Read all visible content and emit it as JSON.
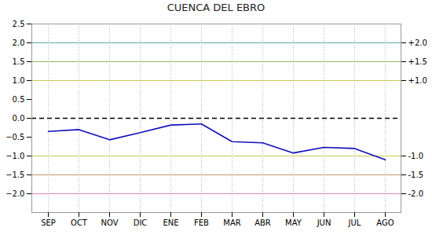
{
  "chart_data": {
    "type": "line",
    "title": "CUENCA DEL EBRO",
    "categories": [
      "SEP",
      "OCT",
      "NOV",
      "DIC",
      "ENE",
      "FEB",
      "MAR",
      "ABR",
      "MAY",
      "JUN",
      "JUL",
      "AGO"
    ],
    "values": [
      -0.35,
      -0.3,
      -0.57,
      -0.38,
      -0.18,
      -0.15,
      -0.62,
      -0.65,
      -0.92,
      -0.77,
      -0.8,
      -1.1
    ],
    "color": "#1010bb",
    "ylim": [
      -2.5,
      2.5
    ],
    "yticks": [
      {
        "value": -2.0,
        "label": "−2.0"
      },
      {
        "value": -1.5,
        "label": "−1.5"
      },
      {
        "value": -1.0,
        "label": "−1.0"
      },
      {
        "value": -0.5,
        "label": "−0.5"
      },
      {
        "value": 0.0,
        "label": "0.0"
      },
      {
        "value": 0.5,
        "label": "0.5"
      },
      {
        "value": 1.0,
        "label": "1.0"
      },
      {
        "value": 1.5,
        "label": "1.5"
      },
      {
        "value": 2.0,
        "label": "2.0"
      },
      {
        "value": 2.5,
        "label": "2.5"
      }
    ],
    "y2lim": [
      -2.5,
      2.5
    ],
    "y2ticks": [
      {
        "value": 2.0,
        "label": "+2.0"
      },
      {
        "value": 1.5,
        "label": "+1.5"
      },
      {
        "value": 1.0,
        "label": "+1.0"
      },
      {
        "value": -1.0,
        "label": "-1.0"
      },
      {
        "value": -1.5,
        "label": "-1.5"
      },
      {
        "value": -2.0,
        "label": "-2.0"
      }
    ],
    "hlines": [
      {
        "value": 2.0,
        "color": "#5faaaa",
        "line_style": "solid"
      },
      {
        "value": 1.5,
        "color": "#90b870",
        "line_style": "solid"
      },
      {
        "value": 1.0,
        "color": "#c8c850",
        "line_style": "solid"
      },
      {
        "value": -1.0,
        "color": "#c8c850",
        "line_style": "solid"
      },
      {
        "value": -1.5,
        "color": "#c09870",
        "line_style": "solid"
      },
      {
        "value": -2.0,
        "color": "#d888b8",
        "line_style": "solid"
      },
      {
        "value": 0,
        "color": "#000000",
        "line_style": "dashed"
      }
    ],
    "grid": "x"
  }
}
